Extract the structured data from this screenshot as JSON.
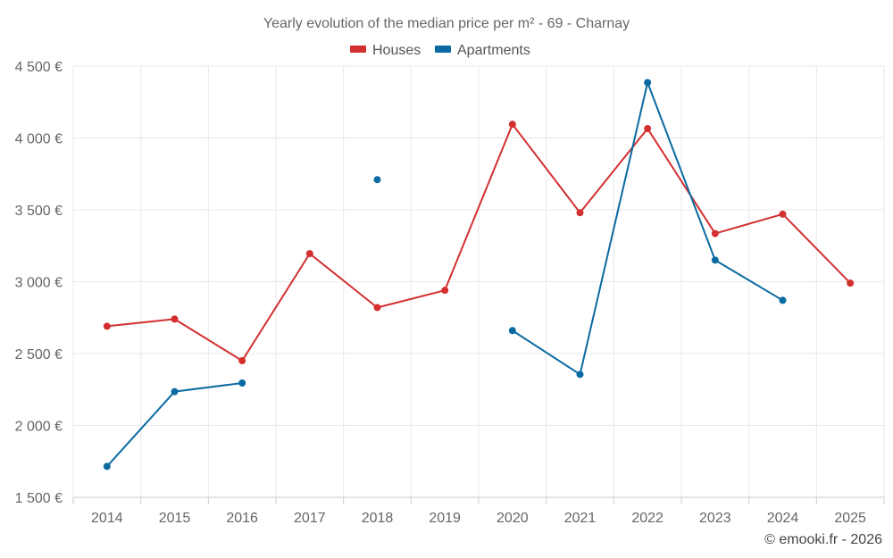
{
  "chart_data": {
    "type": "line",
    "title": "Yearly evolution of the median price per m² - 69 - Charnay",
    "categories": [
      "2014",
      "2015",
      "2016",
      "2017",
      "2018",
      "2019",
      "2020",
      "2021",
      "2022",
      "2023",
      "2024",
      "2025"
    ],
    "series": [
      {
        "name": "Houses",
        "color": "#d32f2f",
        "values": [
          2690,
          2740,
          2450,
          3195,
          2820,
          2940,
          4095,
          3480,
          4065,
          3335,
          3470,
          2990
        ]
      },
      {
        "name": "Apartments",
        "color": "#0a6aa1",
        "values": [
          1715,
          2235,
          2295,
          null,
          3710,
          null,
          2660,
          2355,
          4385,
          3150,
          2870,
          null
        ]
      }
    ],
    "ylim": [
      1500,
      4500
    ],
    "yticks": [
      1500,
      2000,
      2500,
      3000,
      3500,
      4000,
      4500
    ],
    "ytick_labels": [
      "1 500 €",
      "2 000 €",
      "2 500 €",
      "3 000 €",
      "3 500 €",
      "4 000 €",
      "4 500 €"
    ],
    "grid": true,
    "legend": "top-center",
    "xlabel": "",
    "ylabel": ""
  },
  "credit": "© emooki.fr - 2026"
}
